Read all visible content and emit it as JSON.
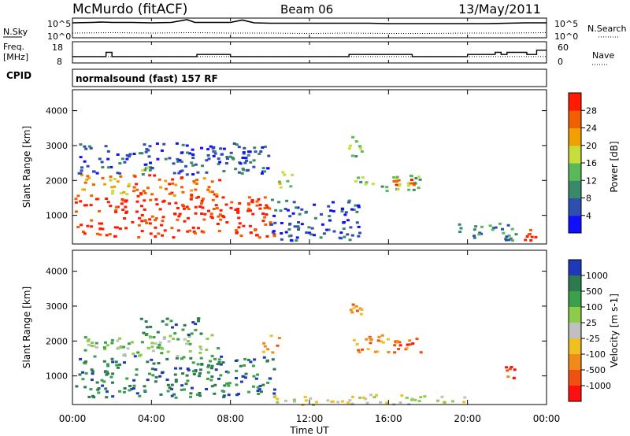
{
  "header": {
    "title": "McMurdo (fitACF)",
    "beam": "Beam 06",
    "date": "13/May/2011",
    "cpid_label": "CPID",
    "cpid_value": "normalsound (fast) 157 RF"
  },
  "colors": {
    "power_scale": [
      "#1010ff",
      "#2f4fb0",
      "#3a8a6a",
      "#58b85a",
      "#c8dc3c",
      "#f0a000",
      "#f06000",
      "#ff1a00"
    ],
    "velocity_scale": [
      "#1e3ab8",
      "#2e7a50",
      "#3aa04a",
      "#8ccc4a",
      "#c0c0c0",
      "#f0c020",
      "#f08a18",
      "#f05010",
      "#ff1010"
    ]
  },
  "chart_data": [
    {
      "type": "line",
      "name": "sky-search-noise",
      "left_labels": [
        "N.Sky",
        "10^5",
        "10^0"
      ],
      "right_labels": [
        "N.Search",
        "10^5",
        "10^0"
      ],
      "series": [
        {
          "name": "N.Sky",
          "x": [
            0,
            1,
            1.5,
            2,
            3,
            4,
            5,
            5.8,
            6.2,
            7,
            8,
            8.6,
            9.2,
            10,
            11,
            12,
            13,
            14,
            15,
            16,
            17,
            18,
            19,
            20,
            21,
            22,
            23,
            24
          ],
          "y": [
            3.8,
            3.9,
            4.0,
            3.9,
            3.9,
            3.8,
            3.9,
            4.6,
            3.9,
            3.9,
            3.9,
            4.5,
            3.8,
            3.7,
            3.7,
            3.7,
            3.7,
            3.7,
            3.7,
            3.6,
            3.6,
            3.6,
            3.6,
            3.6,
            3.6,
            3.7,
            3.8,
            3.8
          ]
        },
        {
          "name": "N.Search",
          "x": [
            0,
            2,
            4,
            6,
            8,
            10,
            12,
            14,
            16,
            18,
            20,
            22,
            24
          ],
          "y": [
            1.2,
            1.3,
            1.2,
            1.3,
            1.2,
            1.2,
            1.1,
            1.2,
            1.1,
            1.1,
            1.2,
            1.2,
            1.3
          ]
        }
      ],
      "ylim": [
        0,
        5
      ]
    },
    {
      "type": "line",
      "name": "frequency-nave",
      "left_labels": [
        "Freq.",
        "[MHz]",
        "18",
        "8"
      ],
      "right_labels": [
        "60",
        "0",
        "Nave"
      ],
      "series": [
        {
          "name": "Freq.",
          "x": [
            0,
            1.6,
            1.7,
            1.9,
            2,
            4,
            6,
            6.3,
            7.8,
            8,
            9,
            10,
            12,
            13.5,
            14,
            16,
            17.2,
            19,
            20,
            21,
            21.4,
            21.7,
            22,
            23,
            23.5,
            24
          ],
          "y": [
            11,
            11,
            13,
            13,
            11,
            11,
            11,
            12,
            12,
            11,
            11,
            11,
            11,
            11,
            12,
            12,
            11,
            11,
            12,
            12,
            13,
            12,
            13,
            12,
            14,
            14
          ]
        },
        {
          "name": "Nave",
          "x": [
            0,
            24
          ],
          "y": [
            11,
            11
          ]
        }
      ],
      "ylim": [
        8,
        18
      ]
    },
    {
      "type": "heatmap",
      "name": "power",
      "xlabel": "",
      "ylabel": "Slant Range [km]",
      "x_ticks": [
        "00:00",
        "04:00",
        "08:00",
        "12:00",
        "16:00",
        "20:00",
        "00:00"
      ],
      "y_ticks": [
        "1000",
        "2000",
        "3000",
        "4000"
      ],
      "xlim": [
        0,
        24
      ],
      "ylim": [
        180,
        4600
      ],
      "colorbar": {
        "label": "Power [dB]",
        "ticks": [
          "4",
          "8",
          "12",
          "16",
          "20",
          "24",
          "28"
        ]
      },
      "regions": [
        {
          "t0": 0.1,
          "t1": 10.2,
          "r0": 400,
          "r1": 1600,
          "level": 7
        },
        {
          "t0": 0.3,
          "t1": 2.8,
          "r0": 1600,
          "r1": 2200,
          "level": 5
        },
        {
          "t0": 3.0,
          "t1": 7.5,
          "r0": 1600,
          "r1": 2200,
          "level": 6
        },
        {
          "t0": 3.4,
          "t1": 3.9,
          "r0": 2200,
          "r1": 2500,
          "level": 3
        },
        {
          "t0": 0.2,
          "t1": 10.0,
          "r0": 2200,
          "r1": 3100,
          "level": 1
        },
        {
          "t0": 10.0,
          "t1": 14.5,
          "r0": 300,
          "r1": 1500,
          "level": 1
        },
        {
          "t0": 10.4,
          "t1": 11.2,
          "r0": 1700,
          "r1": 2300,
          "level": 4
        },
        {
          "t0": 13.8,
          "t1": 14.6,
          "r0": 2600,
          "r1": 3300,
          "level": 3
        },
        {
          "t0": 14.0,
          "t1": 17.6,
          "r0": 1700,
          "r1": 2200,
          "level": 3
        },
        {
          "t0": 16.2,
          "t1": 17.4,
          "r0": 1900,
          "r1": 2100,
          "level": 6
        },
        {
          "t0": 19.2,
          "t1": 22.5,
          "r0": 300,
          "r1": 800,
          "level": 2
        },
        {
          "t0": 22.7,
          "t1": 23.6,
          "r0": 300,
          "r1": 700,
          "level": 7
        }
      ]
    },
    {
      "type": "heatmap",
      "name": "velocity",
      "xlabel": "Time UT",
      "ylabel": "Slant Range [km]",
      "x_ticks": [
        "00:00",
        "04:00",
        "08:00",
        "12:00",
        "16:00",
        "20:00",
        "00:00"
      ],
      "y_ticks": [
        "1000",
        "2000",
        "3000",
        "4000"
      ],
      "xlim": [
        0,
        24
      ],
      "ylim": [
        180,
        4600
      ],
      "colorbar": {
        "label": "Velocity [m s-1]",
        "ticks": [
          "1000",
          "500",
          "100",
          "25",
          "-25",
          "-100",
          "-500",
          "-1000"
        ]
      },
      "regions": [
        {
          "t0": 0.1,
          "t1": 10.2,
          "r0": 400,
          "r1": 1600,
          "level": 1
        },
        {
          "t0": 0.3,
          "t1": 7.5,
          "r0": 1600,
          "r1": 2200,
          "level": 3
        },
        {
          "t0": 3.4,
          "t1": 6.5,
          "r0": 2200,
          "r1": 2700,
          "level": 1
        },
        {
          "t0": 9.5,
          "t1": 10.5,
          "r0": 1700,
          "r1": 2200,
          "level": 6
        },
        {
          "t0": 13.8,
          "t1": 14.6,
          "r0": 2600,
          "r1": 3300,
          "level": 6
        },
        {
          "t0": 14.0,
          "t1": 17.6,
          "r0": 1700,
          "r1": 2200,
          "level": 6
        },
        {
          "t0": 16.2,
          "t1": 17.4,
          "r0": 1900,
          "r1": 2100,
          "level": 7
        },
        {
          "t0": 21.7,
          "t1": 22.4,
          "r0": 900,
          "r1": 1300,
          "level": 7
        },
        {
          "t0": 10.0,
          "t1": 20.0,
          "r0": 200,
          "r1": 500,
          "level": 4
        }
      ]
    }
  ]
}
